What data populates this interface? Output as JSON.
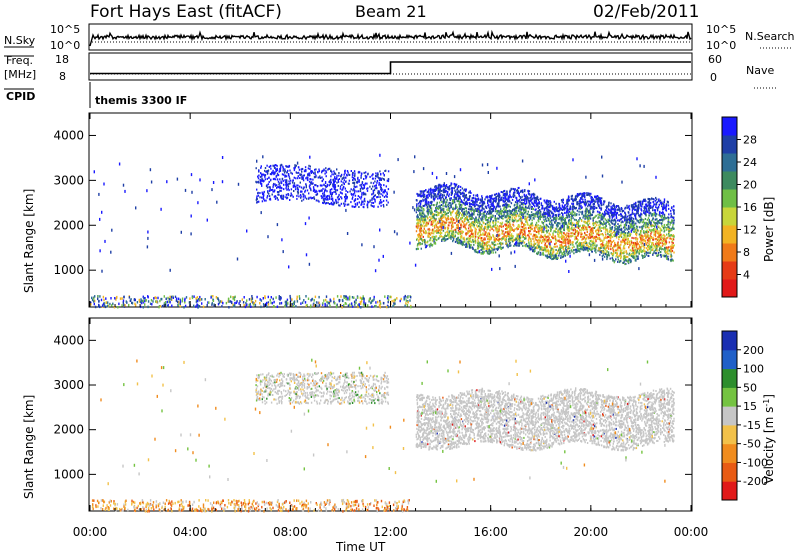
{
  "header": {
    "station": "Fort Hays East (fitACF)",
    "beam": "Beam 21",
    "date": "02/Feb/2011"
  },
  "status_panels": {
    "nsky_label": "N.Sky",
    "nsearch_label": "N.Search",
    "nsky_ticks": [
      "10^5",
      "10^0"
    ],
    "nsearch_ticks": [
      "10^5",
      "10^0"
    ],
    "freq_label": "Freq.",
    "freq_unit": "[MHz]",
    "freq_ticks": [
      "18",
      "8"
    ],
    "nave_label": "Nave",
    "nave_ticks": [
      "60",
      "0"
    ],
    "cpid_label": "CPID",
    "cpid_value": "themis 3300 IF",
    "freq_step_time_hours": 12.0,
    "freq_before_mhz": 10.2,
    "freq_after_mhz": 14.8
  },
  "chart_data": [
    {
      "type": "heatmap",
      "name": "power",
      "ylabel": "Slant Range [km]",
      "yticks": [
        "4000",
        "3000",
        "2000",
        "1000"
      ],
      "ylim": [
        180,
        4500
      ],
      "xlim_hours": [
        0,
        24
      ],
      "colorbar_label": "Power [dB]",
      "colorbar_ticks": [
        "28",
        "24",
        "20",
        "16",
        "12",
        "8",
        "4"
      ],
      "colorbar_colors": [
        "#1a1aff",
        "#1f3fa6",
        "#2e6e95",
        "#3d8a5f",
        "#6fbf45",
        "#c8d63a",
        "#f2b323",
        "#f07a19",
        "#e63b16",
        "#e11919"
      ],
      "regions": [
        {
          "t0": 6.6,
          "t1": 11.9,
          "r0": 2500,
          "r1": 3300,
          "level": "low"
        },
        {
          "t0": 13.0,
          "t1": 23.3,
          "r0": 1500,
          "r1": 2900,
          "level": "mixed"
        },
        {
          "t0": 13.2,
          "t1": 23.2,
          "r0": 1550,
          "r1": 2300,
          "level": "high"
        },
        {
          "t0": 0.5,
          "t1": 12.5,
          "r0": 220,
          "r1": 450,
          "level": "sparse"
        }
      ]
    },
    {
      "type": "heatmap",
      "name": "velocity",
      "ylabel": "Slant Range [km]",
      "yticks": [
        "4000",
        "3000",
        "2000",
        "1000"
      ],
      "ylim": [
        180,
        4500
      ],
      "xlim_hours": [
        0,
        24
      ],
      "colorbar_label": "Velocity [m s^-1]",
      "colorbar_ticks": [
        "200",
        "100",
        "50",
        "15",
        "-15",
        "-50",
        "-100",
        "-200"
      ],
      "colorbar_colors": [
        "#1a2fb2",
        "#2060c8",
        "#2d8e2d",
        "#74c341",
        "#c6c6c6",
        "#f2c14a",
        "#f08c1e",
        "#e85b14",
        "#e11919"
      ],
      "regions": [
        {
          "t0": 6.6,
          "t1": 11.9,
          "r0": 2600,
          "r1": 3300,
          "level": "gray"
        },
        {
          "t0": 13.0,
          "t1": 23.3,
          "r0": 1700,
          "r1": 2900,
          "level": "gray"
        }
      ]
    }
  ],
  "xaxis": {
    "ticks": [
      "00:00",
      "04:00",
      "08:00",
      "12:00",
      "16:00",
      "20:00",
      "00:00"
    ],
    "label": "Time UT"
  }
}
